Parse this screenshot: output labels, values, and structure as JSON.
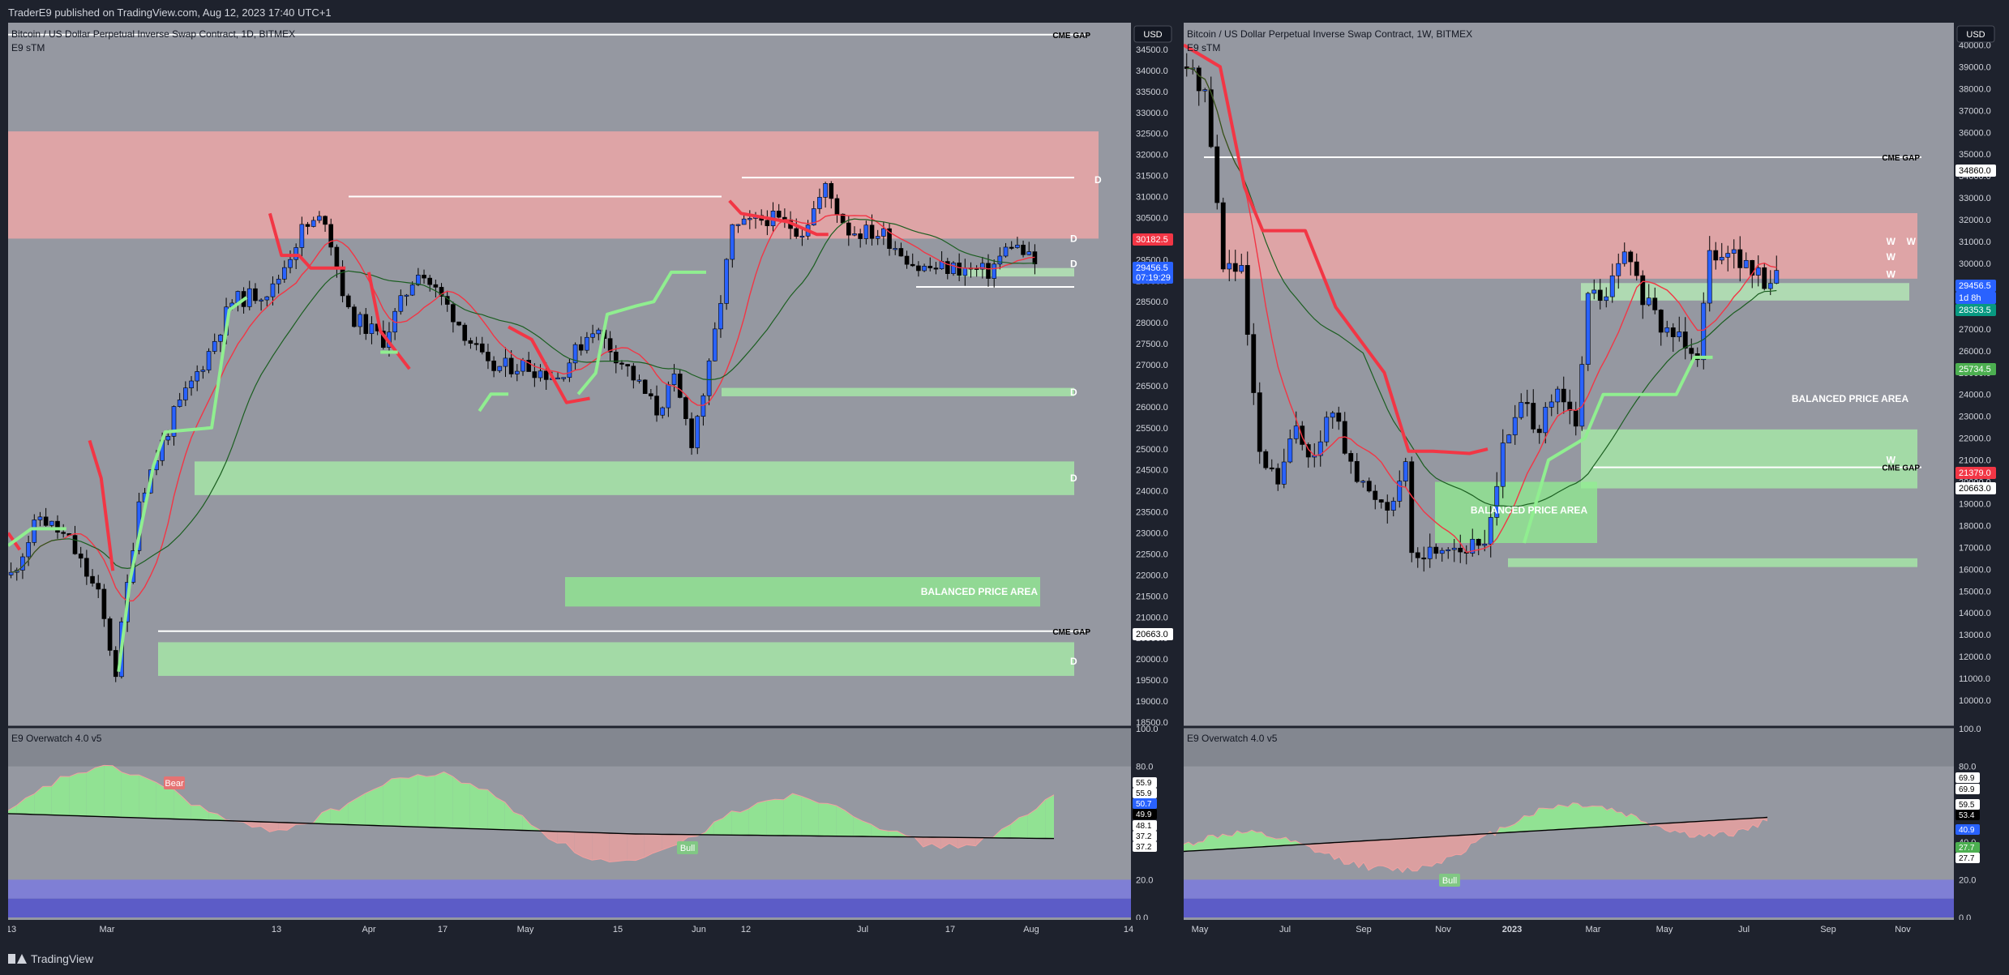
{
  "header": {
    "published": "TraderE9 published on TradingView.com, Aug 12, 2023 17:40 UTC+1"
  },
  "footer": {
    "brand": "TradingView"
  },
  "panels": [
    {
      "title": "Bitcoin / US Dollar Perpetual Inverse Swap Contract, 1D, BITMEX",
      "indicator": "E9 sTM",
      "currency": "USD",
      "osc_title": "E9 Overwatch 4.0 v5",
      "price_labels": [
        {
          "text": "30182.5",
          "color": "#f23645"
        },
        {
          "text": "29456.5",
          "color": "#2962ff"
        },
        {
          "text": "07:19:29",
          "color": "#2962ff"
        },
        {
          "text": "20663.0",
          "color": "#ffffff"
        }
      ],
      "annotations": [
        {
          "text": "CME GAP"
        },
        {
          "text": "CME GAP"
        },
        {
          "text": "BALANCED PRICE AREA"
        },
        {
          "text": "D"
        },
        {
          "text": "D"
        },
        {
          "text": "D"
        },
        {
          "text": "D"
        },
        {
          "text": "D"
        },
        {
          "text": "D"
        }
      ],
      "osc_labels": [
        {
          "text": "55.9",
          "color": "#ffffff"
        },
        {
          "text": "55.9",
          "color": "#ffffff"
        },
        {
          "text": "50.7",
          "color": "#2962ff"
        },
        {
          "text": "49.9",
          "color": "#000000"
        },
        {
          "text": "48.1",
          "color": "#ffffff"
        },
        {
          "text": "37.2",
          "color": "#ffffff"
        },
        {
          "text": "37.2",
          "color": "#ffffff"
        }
      ],
      "osc_tags": [
        "Bear",
        "Bull"
      ]
    },
    {
      "title": "Bitcoin / US Dollar Perpetual Inverse Swap Contract, 1W, BITMEX",
      "indicator": "E9 sTM",
      "currency": "USD",
      "osc_title": "E9 Overwatch 4.0 v5",
      "price_labels": [
        {
          "text": "34860.0",
          "color": "#ffffff"
        },
        {
          "text": "29456.5",
          "color": "#2962ff"
        },
        {
          "text": "1d 8h",
          "color": "#2962ff"
        },
        {
          "text": "28353.5",
          "color": "#089981"
        },
        {
          "text": "25734.5",
          "color": "#4caf50"
        },
        {
          "text": "21379.0",
          "color": "#f23645"
        },
        {
          "text": "20663.0",
          "color": "#ffffff"
        }
      ],
      "annotations": [
        {
          "text": "CME GAP"
        },
        {
          "text": "CME GAP"
        },
        {
          "text": "BALANCED PRICE AREA"
        },
        {
          "text": "BALANCED PRICE AREA"
        },
        {
          "text": "W"
        },
        {
          "text": "W"
        },
        {
          "text": "W"
        },
        {
          "text": "W"
        },
        {
          "text": "W"
        }
      ],
      "osc_labels": [
        {
          "text": "69.9",
          "color": "#ffffff"
        },
        {
          "text": "69.9",
          "color": "#ffffff"
        },
        {
          "text": "59.5",
          "color": "#ffffff"
        },
        {
          "text": "53.4",
          "color": "#000000"
        },
        {
          "text": "40.9",
          "color": "#2962ff"
        },
        {
          "text": "27.7",
          "color": "#4caf50"
        },
        {
          "text": "27.7",
          "color": "#ffffff"
        }
      ],
      "osc_tags": [
        "Bull"
      ]
    }
  ],
  "chart_data": [
    {
      "type": "candlestick",
      "title": "Bitcoin / US Dollar Perpetual Inverse Swap Contract, 1D, BITMEX",
      "ylim": [
        18500,
        35000
      ],
      "y_ticks": [
        "18500.0",
        "19000.0",
        "19500.0",
        "20000.0",
        "20500.0",
        "21000.0",
        "21500.0",
        "22000.0",
        "22500.0",
        "23000.0",
        "23500.0",
        "24000.0",
        "24500.0",
        "25000.0",
        "25500.0",
        "26000.0",
        "26500.0",
        "27000.0",
        "27500.0",
        "28000.0",
        "28500.0",
        "29000.0",
        "29500.0",
        "30000.0",
        "30500.0",
        "31000.0",
        "31500.0",
        "32000.0",
        "32500.0",
        "33000.0",
        "33500.0",
        "34000.0",
        "34500.0"
      ],
      "x_ticks": [
        "13",
        "Mar",
        "13",
        "Apr",
        "17",
        "May",
        "15",
        "Jun",
        "12",
        "Jul",
        "17",
        "Aug",
        "14"
      ],
      "anchors": [
        [
          0,
          22000
        ],
        [
          5,
          23400
        ],
        [
          10,
          22800
        ],
        [
          15,
          21500
        ],
        [
          18,
          19700
        ],
        [
          22,
          23800
        ],
        [
          28,
          25800
        ],
        [
          34,
          27300
        ],
        [
          38,
          28500
        ],
        [
          45,
          28800
        ],
        [
          50,
          30200
        ],
        [
          54,
          30500
        ],
        [
          58,
          28200
        ],
        [
          64,
          27600
        ],
        [
          70,
          29300
        ],
        [
          76,
          28200
        ],
        [
          82,
          26900
        ],
        [
          88,
          27000
        ],
        [
          94,
          26700
        ],
        [
          100,
          27900
        ],
        [
          106,
          26900
        ],
        [
          111,
          25900
        ],
        [
          114,
          26600
        ],
        [
          117,
          25200
        ],
        [
          120,
          26900
        ],
        [
          124,
          30200
        ],
        [
          130,
          30500
        ],
        [
          136,
          30200
        ],
        [
          140,
          31200
        ],
        [
          144,
          30200
        ],
        [
          150,
          30100
        ],
        [
          156,
          29300
        ],
        [
          162,
          29300
        ],
        [
          168,
          29200
        ],
        [
          172,
          29900
        ],
        [
          176,
          29400
        ]
      ],
      "zones": [
        {
          "y": [
            30000,
            32550
          ],
          "color": "#f7a8a8",
          "label": "D"
        },
        {
          "y": [
            29100,
            29300
          ],
          "color": "#b8f0b8",
          "label": "D"
        },
        {
          "y": [
            26250,
            26450
          ],
          "color": "#a8f0a8",
          "label": "D"
        },
        {
          "y": [
            23900,
            24700
          ],
          "color": "#a8f0a8",
          "label": "D"
        },
        {
          "y": [
            19600,
            20400
          ],
          "color": "#a8f0a8",
          "label": "D"
        },
        {
          "y": [
            21250,
            21950
          ],
          "color": "#90ee90",
          "label": "BALANCED PRICE AREA"
        }
      ],
      "hlines": [
        {
          "y": 34850,
          "label": "CME GAP"
        },
        {
          "y": 20663,
          "label": "CME GAP"
        },
        {
          "y": 31450
        },
        {
          "y": 31000
        },
        {
          "y": 28850
        }
      ],
      "oscillator": {
        "ylim": [
          0,
          100
        ],
        "ticks": [
          "0.0",
          "20.0",
          "40.0",
          "60.0",
          "80.0",
          "100.0"
        ]
      }
    },
    {
      "type": "candlestick",
      "title": "Bitcoin / US Dollar Perpetual Inverse Swap Contract, 1W, BITMEX",
      "ylim": [
        9000,
        40500
      ],
      "y_ticks": [
        "10000.0",
        "11000.0",
        "12000.0",
        "13000.0",
        "14000.0",
        "15000.0",
        "16000.0",
        "17000.0",
        "18000.0",
        "19000.0",
        "20000.0",
        "21000.0",
        "22000.0",
        "23000.0",
        "24000.0",
        "25000.0",
        "26000.0",
        "27000.0",
        "28000.0",
        "29000.0",
        "30000.0",
        "31000.0",
        "32000.0",
        "33000.0",
        "34000.0",
        "35000.0",
        "36000.0",
        "37000.0",
        "38000.0",
        "39000.0",
        "40000.0"
      ],
      "x_ticks": [
        "May",
        "Jul",
        "Sep",
        "Nov",
        "2023",
        "Mar",
        "May",
        "Jul",
        "Sep",
        "Nov"
      ],
      "anchors": [
        [
          0,
          39000
        ],
        [
          3,
          38000
        ],
        [
          6,
          30000
        ],
        [
          9,
          29500
        ],
        [
          12,
          21000
        ],
        [
          15,
          20000
        ],
        [
          18,
          22500
        ],
        [
          21,
          21000
        ],
        [
          24,
          23500
        ],
        [
          27,
          20500
        ],
        [
          30,
          19500
        ],
        [
          33,
          19000
        ],
        [
          36,
          20500
        ],
        [
          37,
          16500
        ],
        [
          40,
          16800
        ],
        [
          43,
          17200
        ],
        [
          46,
          16900
        ],
        [
          49,
          17200
        ],
        [
          52,
          21500
        ],
        [
          55,
          23500
        ],
        [
          58,
          22500
        ],
        [
          61,
          24000
        ],
        [
          64,
          22500
        ],
        [
          66,
          28500
        ],
        [
          69,
          28500
        ],
        [
          72,
          30500
        ],
        [
          75,
          28500
        ],
        [
          78,
          27000
        ],
        [
          81,
          26800
        ],
        [
          84,
          26000
        ],
        [
          86,
          30500
        ],
        [
          89,
          30800
        ],
        [
          92,
          29800
        ],
        [
          95,
          29200
        ],
        [
          97,
          29456
        ]
      ],
      "zones": [
        {
          "y": [
            29300,
            32300
          ],
          "color": "#f7a8a8",
          "label": "W"
        },
        {
          "y": [
            28300,
            29100
          ],
          "color": "#b8f0b8",
          "label": "W"
        },
        {
          "y": [
            19700,
            22400
          ],
          "color": "#a8f0a8",
          "label": "BALANCED PRICE AREA"
        },
        {
          "y": [
            16100,
            16500
          ],
          "color": "#a8f0a8"
        },
        {
          "y": [
            17200,
            20000
          ],
          "color": "#90ee90",
          "label": "BALANCED PRICE AREA"
        }
      ],
      "hlines": [
        {
          "y": 34860,
          "label": "CME GAP"
        },
        {
          "y": 20663,
          "label": "CME GAP"
        }
      ],
      "oscillator": {
        "ylim": [
          0,
          100
        ],
        "ticks": [
          "0.0",
          "20.0",
          "40.0",
          "60.0",
          "80.0",
          "100.0"
        ]
      }
    }
  ]
}
